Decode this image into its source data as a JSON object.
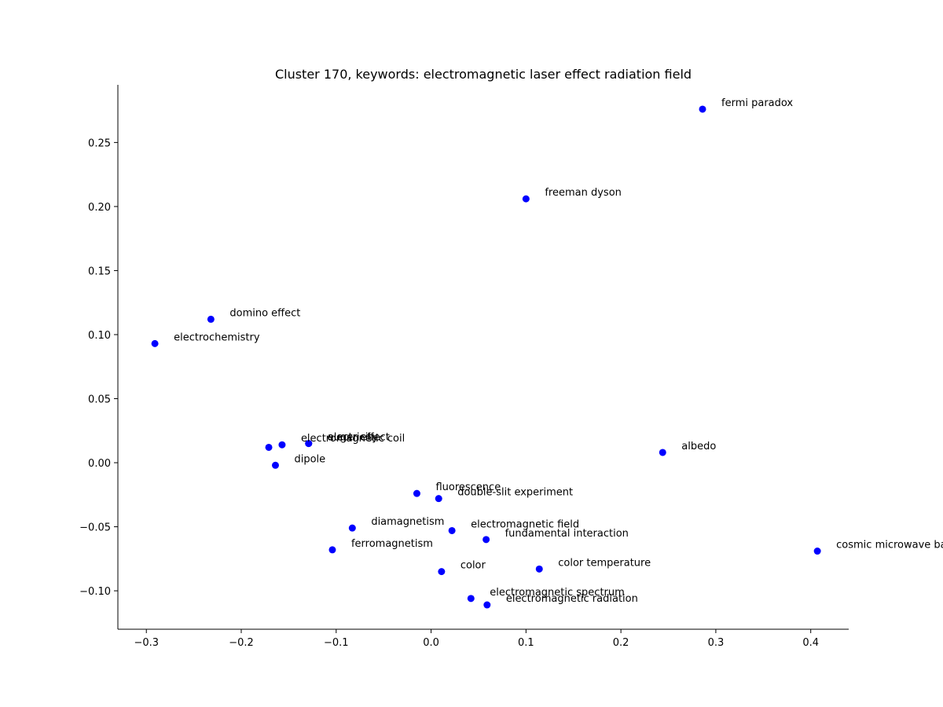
{
  "chart_data": {
    "type": "scatter",
    "title": "Cluster 170, keywords: electromagnetic laser effect radiation field",
    "xlabel": "",
    "ylabel": "",
    "xlim": [
      -0.33,
      0.44
    ],
    "ylim": [
      -0.13,
      0.295
    ],
    "grid": false,
    "x_ticks": [
      -0.3,
      -0.2,
      -0.1,
      0.0,
      0.1,
      0.2,
      0.3,
      0.4
    ],
    "x_tick_labels": [
      "−0.3",
      "−0.2",
      "−0.1",
      "0.0",
      "0.1",
      "0.2",
      "0.3",
      "0.4"
    ],
    "y_ticks": [
      -0.1,
      -0.05,
      0.0,
      0.05,
      0.1,
      0.15,
      0.2,
      0.25
    ],
    "y_tick_labels": [
      "−0.10",
      "−0.05",
      "0.00",
      "0.05",
      "0.10",
      "0.15",
      "0.20",
      "0.25"
    ],
    "color": "#0000ff",
    "points": [
      {
        "label": "fermi paradox",
        "x": 0.286,
        "y": 0.276
      },
      {
        "label": "freeman dyson",
        "x": 0.1,
        "y": 0.206
      },
      {
        "label": "domino effect",
        "x": -0.232,
        "y": 0.112
      },
      {
        "label": "electrochemistry",
        "x": -0.291,
        "y": 0.093
      },
      {
        "label": "auger effect",
        "x": -0.129,
        "y": 0.015
      },
      {
        "label": "electricity",
        "x": -0.129,
        "y": 0.015
      },
      {
        "label": "electromagnetic coil",
        "x": -0.157,
        "y": 0.014
      },
      {
        "label": "",
        "x": -0.171,
        "y": 0.012
      },
      {
        "label": "albedo",
        "x": 0.244,
        "y": 0.008
      },
      {
        "label": "dipole",
        "x": -0.164,
        "y": -0.002
      },
      {
        "label": "fluorescence",
        "x": -0.015,
        "y": -0.024
      },
      {
        "label": "double-slit experiment",
        "x": 0.008,
        "y": -0.028
      },
      {
        "label": "diamagnetism",
        "x": -0.083,
        "y": -0.051
      },
      {
        "label": "electromagnetic field",
        "x": 0.022,
        "y": -0.053
      },
      {
        "label": "fundamental interaction",
        "x": 0.058,
        "y": -0.06
      },
      {
        "label": "ferromagnetism",
        "x": -0.104,
        "y": -0.068
      },
      {
        "label": "cosmic microwave background",
        "x": 0.407,
        "y": -0.069
      },
      {
        "label": "color",
        "x": 0.011,
        "y": -0.085
      },
      {
        "label": "color temperature",
        "x": 0.114,
        "y": -0.083
      },
      {
        "label": "electromagnetic spectrum",
        "x": 0.042,
        "y": -0.106
      },
      {
        "label": "electromagnetic radiation",
        "x": 0.059,
        "y": -0.111
      }
    ]
  }
}
